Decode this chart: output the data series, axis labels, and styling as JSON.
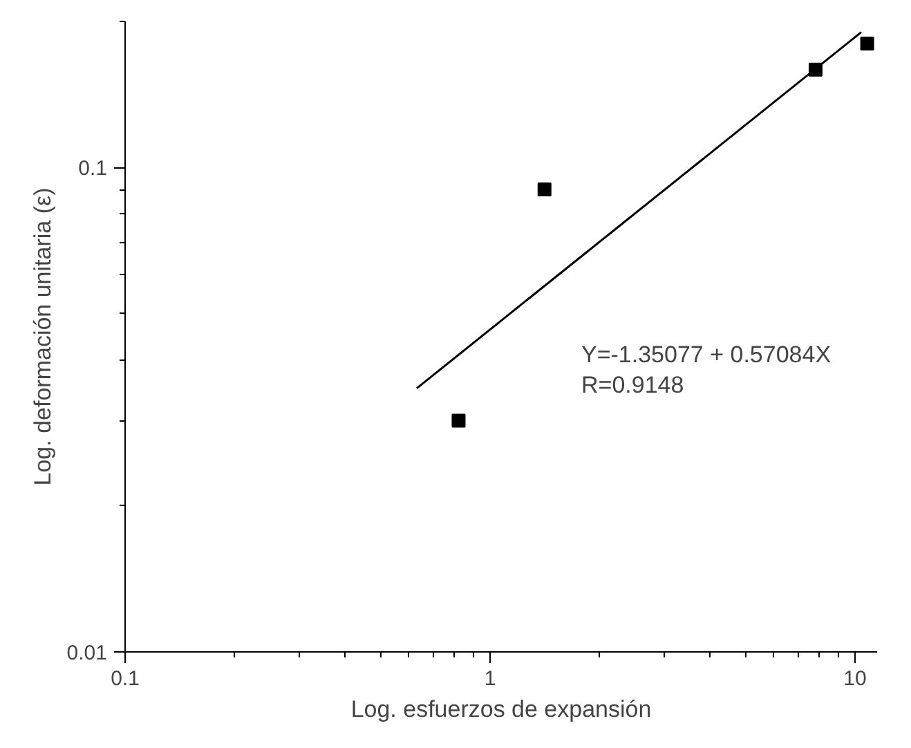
{
  "chart_data": {
    "type": "scatter",
    "xlabel": "Log. esfuerzos de expansión",
    "ylabel": "Log. deformación unitaria (ε)",
    "log": "xy",
    "grid": false,
    "marker": "square",
    "xlim": [
      0.1,
      11.5
    ],
    "ylim": [
      0.01,
      0.2
    ],
    "xticks": [
      0.1,
      1,
      10
    ],
    "yticks": [
      0.01,
      0.1
    ],
    "series": [
      {
        "color": "#000000",
        "x": [
          0.82,
          1.41,
          7.8,
          10.8
        ],
        "values": [
          0.03,
          0.09,
          0.159,
          0.18
        ]
      },
      {
        "type": "line",
        "color": "#000000",
        "x": [
          0.63,
          10.4
        ],
        "values": [
          0.035,
          0.19
        ],
        "marker": "none",
        "line_style": "solid"
      }
    ],
    "annotations": [
      "Y=-1.35077 + 0.57084X",
      "R=0.9148"
    ]
  }
}
